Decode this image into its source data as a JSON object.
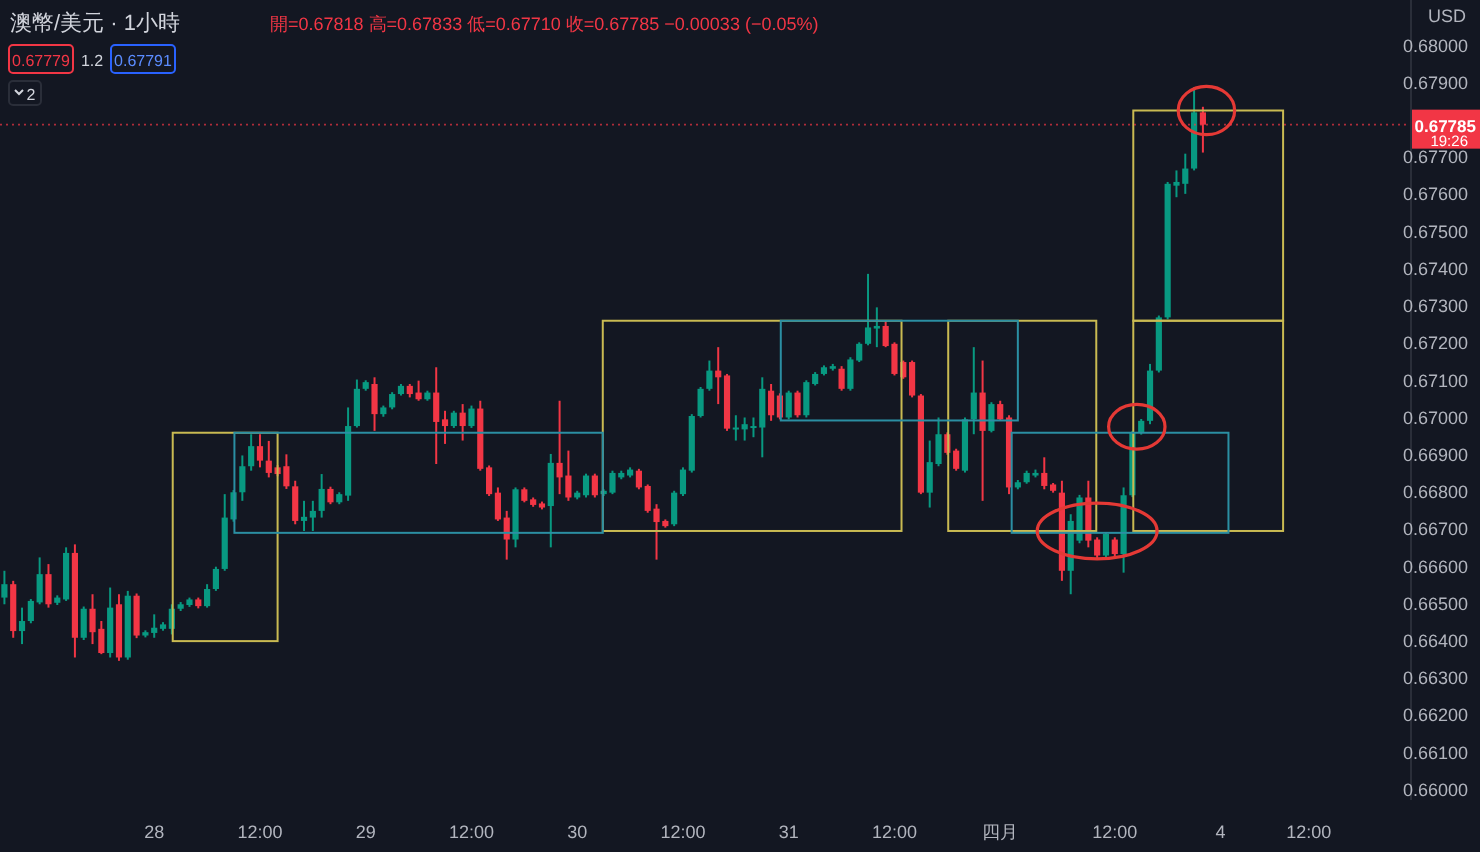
{
  "chart_data": {
    "type": "candlestick",
    "title": "澳幣/美元 · 1小時",
    "ylabel": "USD",
    "categories": [
      null,
      null,
      null,
      null,
      null,
      null,
      null,
      null,
      null,
      null,
      null,
      null,
      null,
      null,
      null,
      null,
      null,
      "28",
      null,
      null,
      null,
      null,
      null,
      null,
      null,
      null,
      null,
      null,
      null,
      "12:00",
      null,
      null,
      null,
      null,
      null,
      null,
      null,
      null,
      null,
      null,
      null,
      "29",
      null,
      null,
      null,
      null,
      null,
      null,
      null,
      null,
      null,
      null,
      null,
      "12:00",
      null,
      null,
      null,
      null,
      null,
      null,
      null,
      null,
      null,
      null,
      null,
      "30",
      null,
      null,
      null,
      null,
      null,
      null,
      null,
      null,
      null,
      null,
      null,
      "12:00",
      null,
      null,
      null,
      null,
      null,
      null,
      null,
      null,
      null,
      null,
      null,
      "31",
      null,
      null,
      null,
      null,
      null,
      null,
      null,
      null,
      null,
      null,
      null,
      "12:00",
      null,
      null,
      null,
      null,
      null,
      null,
      null,
      null,
      null,
      null,
      null,
      "四月",
      null,
      null,
      null,
      null,
      null,
      null,
      null,
      null,
      null,
      null,
      null,
      null,
      "12:00",
      null,
      null,
      null,
      null,
      null,
      null,
      null,
      null,
      null,
      null,
      null,
      "4",
      null,
      null,
      null,
      null,
      null,
      null,
      null,
      null,
      null,
      "12:00",
      null,
      null,
      null,
      null,
      null,
      null,
      null,
      null,
      null,
      null,
      null
    ],
    "ohlc": [
      [
        0.66514,
        0.66586,
        0.66496,
        0.6655
      ],
      [
        0.6655,
        0.66559,
        0.66406,
        0.66424
      ],
      [
        0.66424,
        0.66487,
        0.66389,
        0.66451
      ],
      [
        0.66451,
        0.6651,
        0.66445,
        0.66505
      ],
      [
        0.66501,
        0.66622,
        0.66496,
        0.66577
      ],
      [
        0.66577,
        0.66604,
        0.66487,
        0.66496
      ],
      [
        0.665,
        0.6652,
        0.66494,
        0.66514
      ],
      [
        0.66509,
        0.66649,
        0.66505,
        0.66634
      ],
      [
        0.66634,
        0.66657,
        0.66353,
        0.66406
      ],
      [
        0.66406,
        0.6649,
        0.664,
        0.66484
      ],
      [
        0.66484,
        0.66523,
        0.66389,
        0.66421
      ],
      [
        0.6643,
        0.66451,
        0.66362,
        0.66365
      ],
      [
        0.66365,
        0.66541,
        0.66353,
        0.66487
      ],
      [
        0.66496,
        0.66523,
        0.66344,
        0.66353
      ],
      [
        0.66353,
        0.66532,
        0.66347,
        0.66519
      ],
      [
        0.66519,
        0.66525,
        0.66405,
        0.66412
      ],
      [
        0.66412,
        0.66426,
        0.66407,
        0.66421
      ],
      [
        0.66419,
        0.66469,
        0.66406,
        0.66433
      ],
      [
        0.6643,
        0.66448,
        0.66425,
        0.66442
      ],
      [
        0.6643,
        0.66496,
        0.66415,
        0.66484
      ],
      [
        0.66484,
        0.66502,
        0.66478,
        0.66496
      ],
      [
        0.66494,
        0.66514,
        0.66489,
        0.66509
      ],
      [
        0.66509,
        0.66514,
        0.66485,
        0.66491
      ],
      [
        0.66491,
        0.6655,
        0.66487,
        0.66537
      ],
      [
        0.66537,
        0.66597,
        0.66532,
        0.66591
      ],
      [
        0.66591,
        0.66792,
        0.66586,
        0.66729
      ],
      [
        0.66724,
        0.66803,
        0.66718,
        0.66797
      ],
      [
        0.66797,
        0.66896,
        0.66774,
        0.66867
      ],
      [
        0.66867,
        0.66953,
        0.66855,
        0.66921
      ],
      [
        0.66921,
        0.66953,
        0.66864,
        0.66882
      ],
      [
        0.66882,
        0.66935,
        0.66837,
        0.66849
      ],
      [
        0.66864,
        0.6687,
        0.6684,
        0.66846
      ],
      [
        0.66867,
        0.66899,
        0.66806,
        0.66813
      ],
      [
        0.66813,
        0.66828,
        0.66711,
        0.6672
      ],
      [
        0.6672,
        0.66774,
        0.66693,
        0.66731
      ],
      [
        0.66729,
        0.66774,
        0.66693,
        0.66747
      ],
      [
        0.66747,
        0.66846,
        0.66729,
        0.66806
      ],
      [
        0.66806,
        0.66812,
        0.66765,
        0.6677
      ],
      [
        0.6677,
        0.66797,
        0.66765,
        0.66792
      ],
      [
        0.66788,
        0.67025,
        0.66774,
        0.66975
      ],
      [
        0.66975,
        0.671,
        0.66971,
        0.67075
      ],
      [
        0.67075,
        0.67098,
        0.6707,
        0.67093
      ],
      [
        0.67088,
        0.67106,
        0.66962,
        0.67007
      ],
      [
        0.67007,
        0.6703,
        0.67,
        0.67025
      ],
      [
        0.67025,
        0.67066,
        0.6702,
        0.67061
      ],
      [
        0.67061,
        0.67088,
        0.67057,
        0.67083
      ],
      [
        0.67083,
        0.67088,
        0.67052,
        0.67061
      ],
      [
        0.67065,
        0.67097,
        0.67043,
        0.67047
      ],
      [
        0.67047,
        0.6707,
        0.67043,
        0.67065
      ],
      [
        0.67065,
        0.67133,
        0.66873,
        0.66986
      ],
      [
        0.66993,
        0.67016,
        0.66927,
        0.66975
      ],
      [
        0.66975,
        0.67016,
        0.6697,
        0.67011
      ],
      [
        0.67011,
        0.67034,
        0.66936,
        0.66975
      ],
      [
        0.66975,
        0.6703,
        0.6697,
        0.67022
      ],
      [
        0.67022,
        0.67043,
        0.66855,
        0.6686
      ],
      [
        0.66864,
        0.66869,
        0.66787,
        0.66792
      ],
      [
        0.66796,
        0.6681,
        0.6672,
        0.66724
      ],
      [
        0.66729,
        0.66747,
        0.66616,
        0.6667
      ],
      [
        0.6667,
        0.6681,
        0.66649,
        0.66805
      ],
      [
        0.66805,
        0.6681,
        0.6677,
        0.66774
      ],
      [
        0.66778,
        0.66783,
        0.66758,
        0.66763
      ],
      [
        0.66767,
        0.66772,
        0.66751,
        0.66756
      ],
      [
        0.6676,
        0.669,
        0.66649,
        0.66876
      ],
      [
        0.66876,
        0.67043,
        0.66792,
        0.66837
      ],
      [
        0.66842,
        0.66909,
        0.66774,
        0.66783
      ],
      [
        0.66783,
        0.66801,
        0.66778,
        0.66796
      ],
      [
        0.66789,
        0.66847,
        0.66783,
        0.66842
      ],
      [
        0.66842,
        0.66847,
        0.66783,
        0.66789
      ],
      [
        0.66792,
        0.66805,
        0.66787,
        0.66801
      ],
      [
        0.66796,
        0.66855,
        0.66792,
        0.66849
      ],
      [
        0.66837,
        0.66855,
        0.66832,
        0.66849
      ],
      [
        0.66842,
        0.66864,
        0.66837,
        0.66858
      ],
      [
        0.66855,
        0.6686,
        0.66805,
        0.6681
      ],
      [
        0.66814,
        0.66818,
        0.66742,
        0.66747
      ],
      [
        0.66753,
        0.66765,
        0.66616,
        0.66717
      ],
      [
        0.6672,
        0.66724,
        0.66702,
        0.66706
      ],
      [
        0.66711,
        0.66801,
        0.66706,
        0.66796
      ],
      [
        0.66792,
        0.66864,
        0.66787,
        0.66858
      ],
      [
        0.66855,
        0.67007,
        0.6685,
        0.67002
      ],
      [
        0.67002,
        0.6708,
        0.66998,
        0.67075
      ],
      [
        0.67075,
        0.67151,
        0.6707,
        0.67124
      ],
      [
        0.67124,
        0.67187,
        0.67034,
        0.67106
      ],
      [
        0.67111,
        0.67115,
        0.66962,
        0.66968
      ],
      [
        0.66966,
        0.67004,
        0.66936,
        0.66971
      ],
      [
        0.66966,
        0.66998,
        0.66936,
        0.6698
      ],
      [
        0.66971,
        0.66998,
        0.66945,
        0.66975
      ],
      [
        0.66971,
        0.67106,
        0.66891,
        0.67075
      ],
      [
        0.6707,
        0.67088,
        0.66989,
        0.67004
      ],
      [
        0.67057,
        0.67063,
        0.66993,
        0.66998
      ],
      [
        0.66998,
        0.6707,
        0.66993,
        0.67065
      ],
      [
        0.67065,
        0.6707,
        0.66998,
        0.67004
      ],
      [
        0.67004,
        0.67098,
        0.66998,
        0.67093
      ],
      [
        0.67088,
        0.6712,
        0.67084,
        0.67115
      ],
      [
        0.67115,
        0.67138,
        0.67111,
        0.67133
      ],
      [
        0.67129,
        0.67142,
        0.67124,
        0.67136
      ],
      [
        0.67129,
        0.67136,
        0.6707,
        0.67075
      ],
      [
        0.67075,
        0.6716,
        0.6707,
        0.67154
      ],
      [
        0.67151,
        0.672,
        0.67147,
        0.67196
      ],
      [
        0.67196,
        0.67384,
        0.67192,
        0.6724
      ],
      [
        0.67237,
        0.67294,
        0.67187,
        0.67244
      ],
      [
        0.67244,
        0.67258,
        0.67187,
        0.6719
      ],
      [
        0.67196,
        0.672,
        0.67111,
        0.67115
      ],
      [
        0.67147,
        0.67151,
        0.67102,
        0.67106
      ],
      [
        0.67147,
        0.67151,
        0.67052,
        0.67057
      ],
      [
        0.67057,
        0.67061,
        0.66792,
        0.66796
      ],
      [
        0.66796,
        0.66936,
        0.66756,
        0.66878
      ],
      [
        0.66873,
        0.66998,
        0.66867,
        0.66953
      ],
      [
        0.66953,
        0.66958,
        0.66898,
        0.66903
      ],
      [
        0.66909,
        0.66914,
        0.66855,
        0.6686
      ],
      [
        0.66855,
        0.66998,
        0.6685,
        0.66993
      ],
      [
        0.66993,
        0.67187,
        0.66953,
        0.67065
      ],
      [
        0.67065,
        0.67151,
        0.66774,
        0.66962
      ],
      [
        0.66962,
        0.67039,
        0.66958,
        0.67034
      ],
      [
        0.67034,
        0.67043,
        0.66989,
        0.66993
      ],
      [
        0.66998,
        0.67004,
        0.66792,
        0.6681
      ],
      [
        0.6681,
        0.6683,
        0.66805,
        0.66824
      ],
      [
        0.66824,
        0.66855,
        0.6682,
        0.66849
      ],
      [
        0.66842,
        0.66858,
        0.66837,
        0.66849
      ],
      [
        0.66849,
        0.66891,
        0.66805,
        0.66814
      ],
      [
        0.66818,
        0.66822,
        0.66796,
        0.66801
      ],
      [
        0.66796,
        0.66828,
        0.66559,
        0.66586
      ],
      [
        0.66586,
        0.66738,
        0.66523,
        0.6672
      ],
      [
        0.66667,
        0.6679,
        0.6666,
        0.66783
      ],
      [
        0.66783,
        0.66828,
        0.66649,
        0.66667
      ],
      [
        0.6667,
        0.66676,
        0.6662,
        0.66627
      ],
      [
        0.66627,
        0.6669,
        0.6662,
        0.66685
      ],
      [
        0.6667,
        0.66676,
        0.66624,
        0.66631
      ],
      [
        0.66631,
        0.6681,
        0.66581,
        0.66789
      ],
      [
        0.66789,
        0.66962,
        0.66784,
        0.66957
      ],
      [
        0.66957,
        0.66994,
        0.66952,
        0.66989
      ],
      [
        0.66989,
        0.67142,
        0.6698,
        0.67124
      ],
      [
        0.67124,
        0.67272,
        0.67119,
        0.67267
      ],
      [
        0.67267,
        0.67631,
        0.67262,
        0.67626
      ],
      [
        0.67621,
        0.67662,
        0.6759,
        0.67631
      ],
      [
        0.67626,
        0.67707,
        0.67599,
        0.67667
      ],
      [
        0.67667,
        0.67886,
        0.67662,
        0.67818
      ],
      [
        0.67818,
        0.67833,
        0.6771,
        0.67785
      ],
      null,
      null,
      null,
      null,
      null,
      null,
      null,
      null,
      null,
      null,
      null,
      null,
      null,
      null,
      null,
      null,
      null,
      null,
      null,
      null,
      null,
      null,
      null
    ],
    "ylim": [
      0.6597,
      0.6812
    ],
    "yticks": [
      {
        "value": 0.66,
        "label": "0.66000"
      },
      {
        "value": 0.661,
        "label": "0.66100"
      },
      {
        "value": 0.662,
        "label": "0.66200"
      },
      {
        "value": 0.663,
        "label": "0.66300"
      },
      {
        "value": 0.664,
        "label": "0.66400"
      },
      {
        "value": 0.665,
        "label": "0.66500"
      },
      {
        "value": 0.666,
        "label": "0.66600"
      },
      {
        "value": 0.667,
        "label": "0.66700"
      },
      {
        "value": 0.668,
        "label": "0.66800"
      },
      {
        "value": 0.669,
        "label": "0.66900"
      },
      {
        "value": 0.67,
        "label": "0.67000"
      },
      {
        "value": 0.671,
        "label": "0.67100"
      },
      {
        "value": 0.672,
        "label": "0.67200"
      },
      {
        "value": 0.673,
        "label": "0.67300"
      },
      {
        "value": 0.674,
        "label": "0.67400"
      },
      {
        "value": 0.675,
        "label": "0.67500"
      },
      {
        "value": 0.676,
        "label": "0.67600"
      },
      {
        "value": 0.677,
        "label": "0.67700"
      },
      {
        "value": 0.679,
        "label": "0.67900"
      },
      {
        "value": 0.68,
        "label": "0.68000"
      }
    ],
    "ref_lines": [
      {
        "axis": "y",
        "value": 0.67785,
        "label": "0.67785",
        "color": "#f23645",
        "line_style": "dotted"
      }
    ],
    "annotations": [
      "開=0.67818 高=0.67833 低=0.67710 收=0.67785 −0.00033 (−0.05%)",
      "0.67779",
      "1.2",
      "0.67791",
      "2",
      "19:26"
    ]
  }
}
